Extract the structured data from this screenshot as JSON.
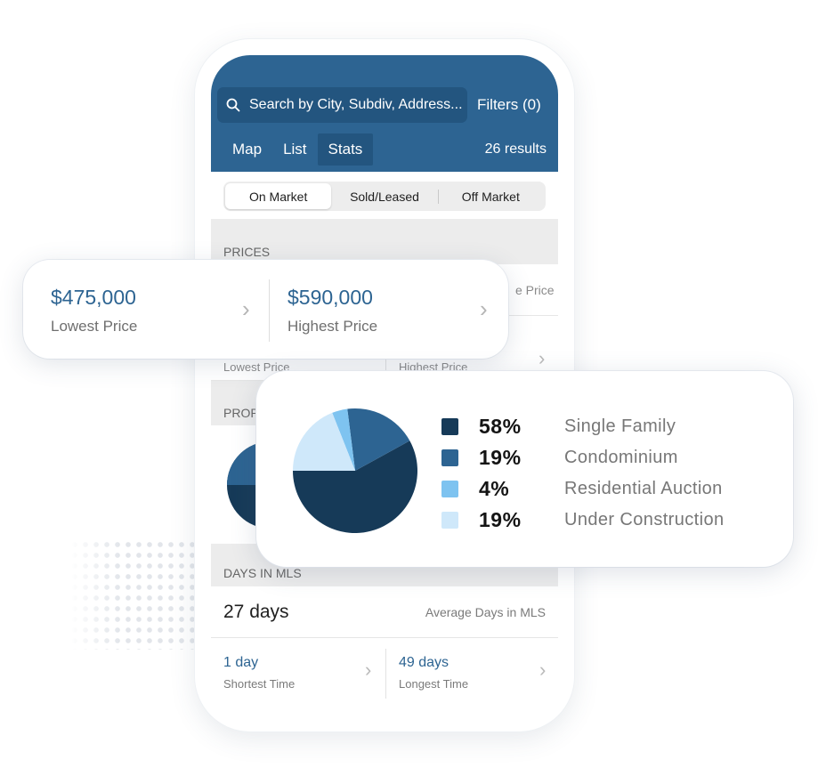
{
  "search": {
    "placeholder": "Search by City, Subdiv, Address..."
  },
  "filters_label": "Filters (0)",
  "nav": {
    "tabs": [
      "Map",
      "List",
      "Stats"
    ],
    "active": "Stats"
  },
  "results_count": "26 results",
  "segment": {
    "items": [
      "On Market",
      "Sold/Leased",
      "Off Market"
    ],
    "active": "On Market"
  },
  "prices": {
    "heading": "PRICES",
    "lowest_value": "$475,000",
    "lowest_label": "Lowest Price",
    "highest_value": "$590,000",
    "highest_label": "Highest Price",
    "peek_right": "e Price",
    "peek_low": "Lowest Price",
    "peek_high": "Highest Price"
  },
  "property_heading_peek": "PROP",
  "property_types": {
    "legend": [
      {
        "pct": "58%",
        "label": "Single Family",
        "color": "#163a58"
      },
      {
        "pct": "19%",
        "label": "Condominium",
        "color": "#2d6492"
      },
      {
        "pct": "4%",
        "label": "Residential Auction",
        "color": "#7ec3f0"
      },
      {
        "pct": "19%",
        "label": "Under Construction",
        "color": "#cfe8fa"
      }
    ]
  },
  "chart_data": {
    "type": "pie",
    "categories": [
      "Single Family",
      "Condominium",
      "Residential Auction",
      "Under Construction"
    ],
    "values": [
      58,
      19,
      4,
      19
    ],
    "colors": [
      "#163a58",
      "#2d6492",
      "#7ec3f0",
      "#cfe8fa"
    ]
  },
  "days": {
    "heading": "DAYS IN MLS",
    "average_value": "27 days",
    "average_label": "Average Days in MLS",
    "shortest_value": "1 day",
    "shortest_label": "Shortest Time",
    "longest_value": "49 days",
    "longest_label": "Longest Time"
  },
  "colors": {
    "brand": "#2d6492",
    "brand_dark": "#23557f"
  }
}
